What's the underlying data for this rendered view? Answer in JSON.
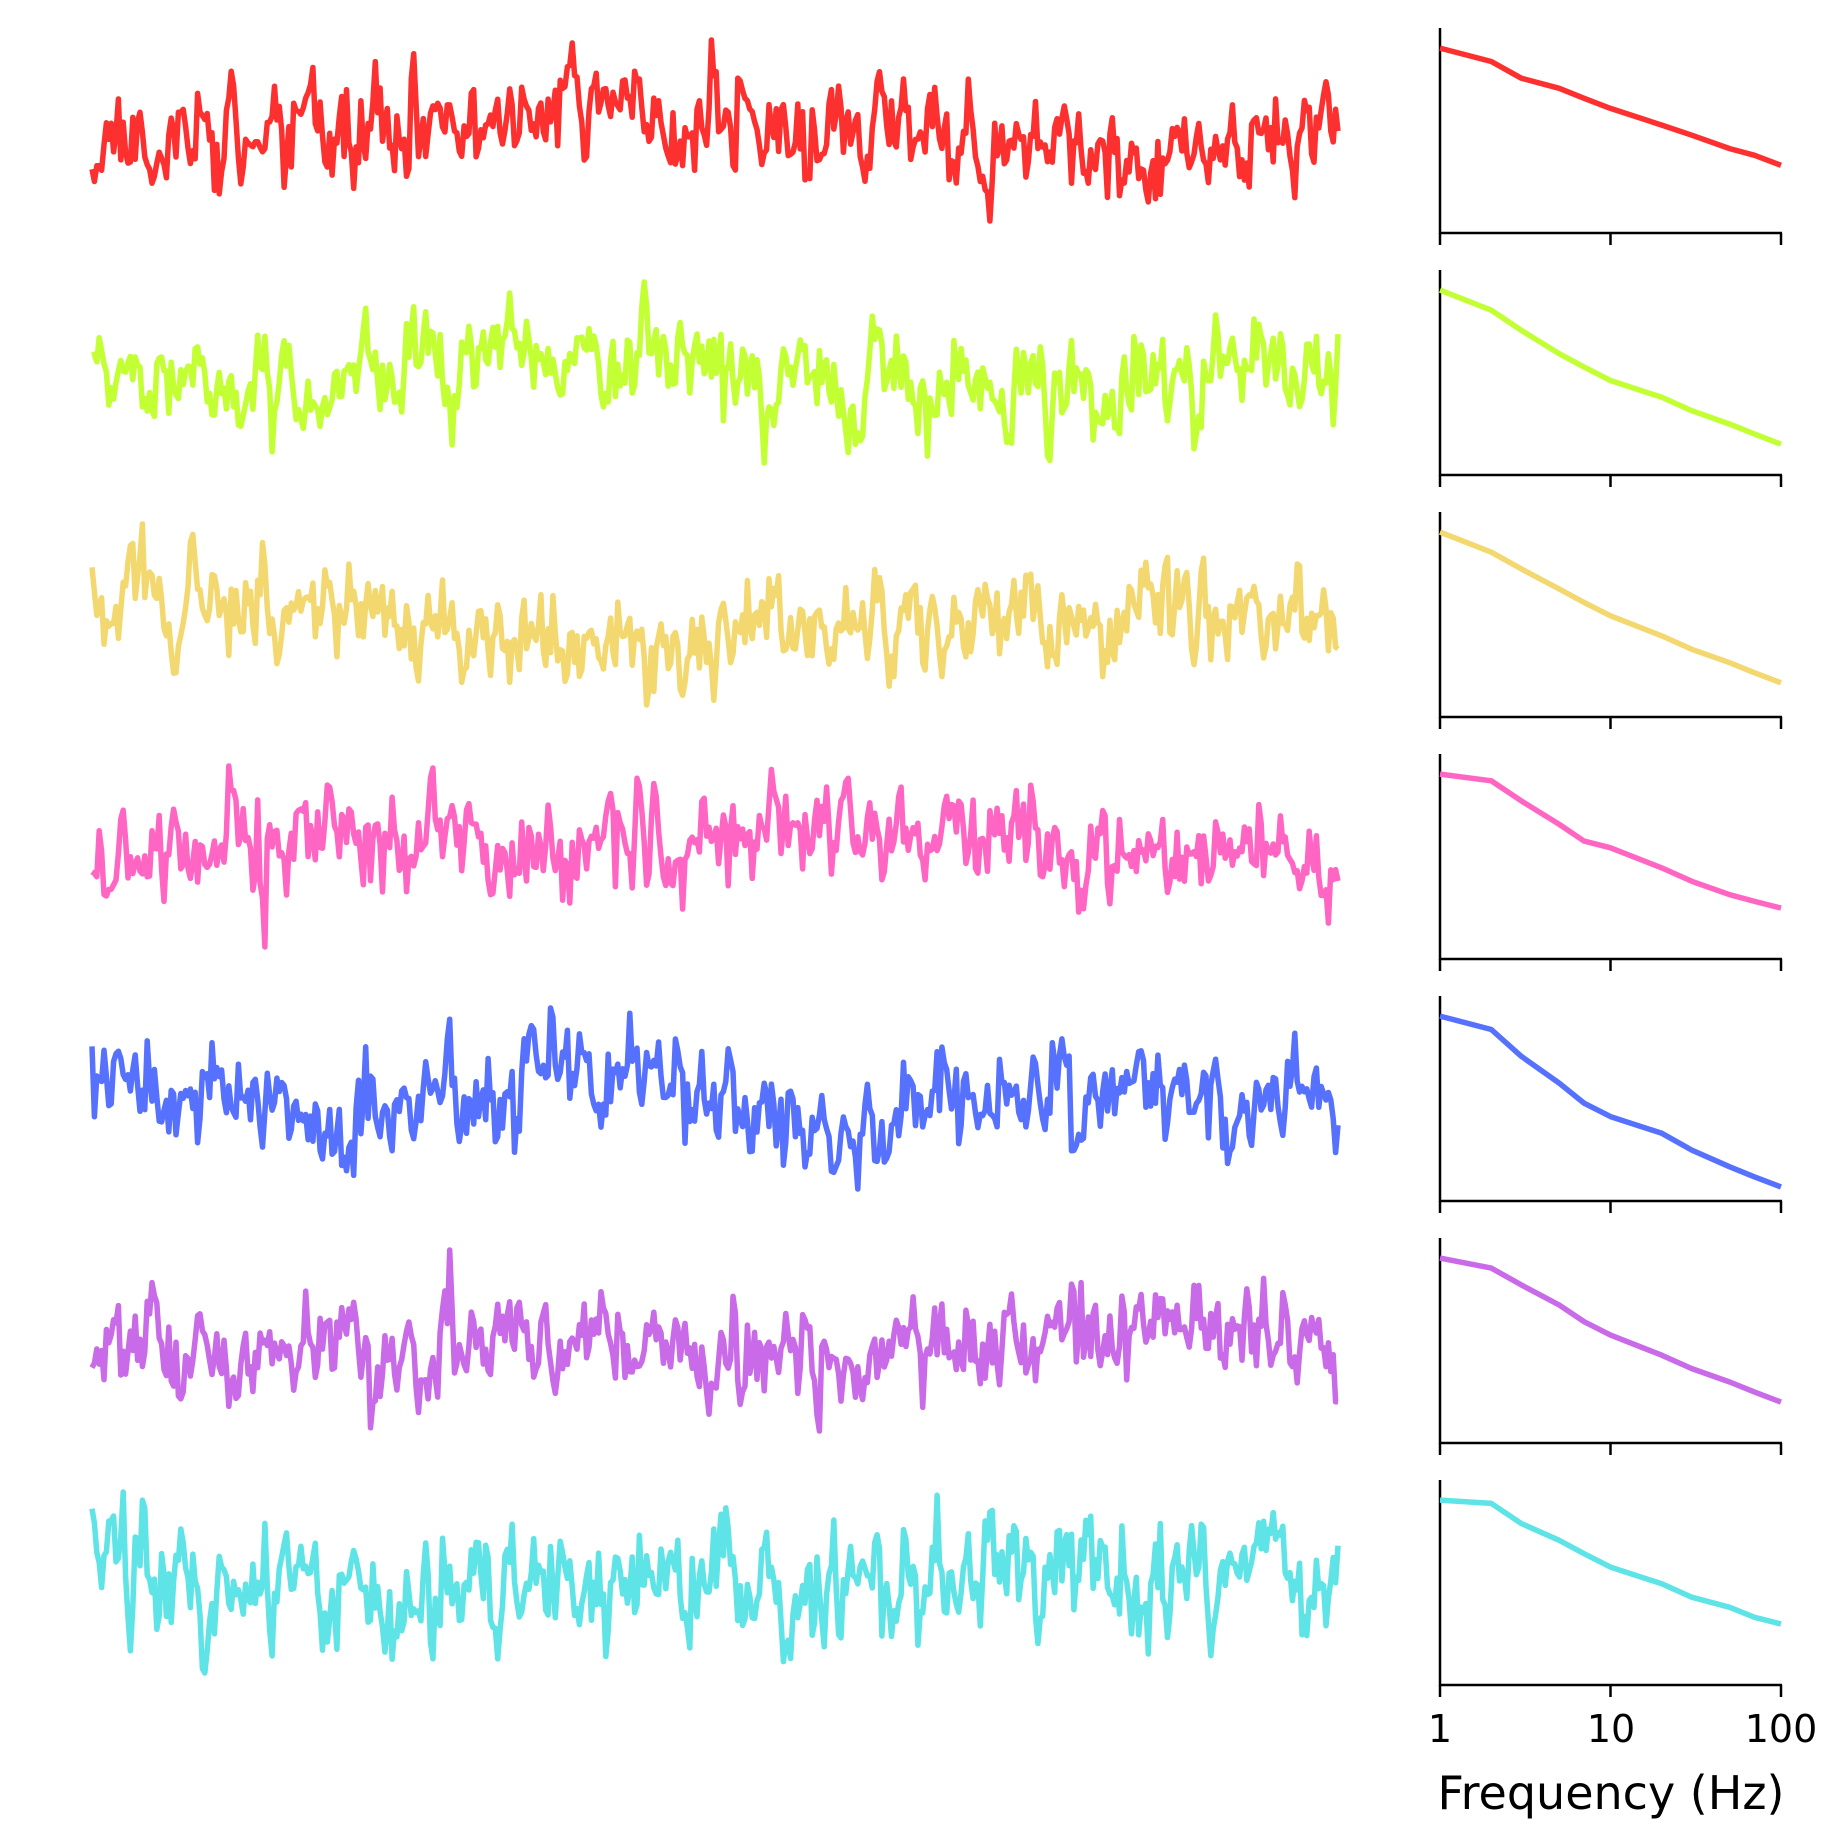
{
  "chart_data": {
    "type": "line",
    "description_free": true,
    "rows": [
      {
        "color": "#fd3030",
        "time_series": {
          "seed": 11,
          "noise": 0.9,
          "drift": [
            0.1,
            0.05,
            0.9,
            0.25,
            -0.3,
            0.35
          ]
        },
        "spectrum": {
          "x": [
            1,
            2,
            3,
            5,
            7,
            10,
            20,
            30,
            50,
            70,
            100
          ],
          "y": [
            0.0,
            -0.2,
            -0.45,
            -0.6,
            -0.75,
            -0.9,
            -1.15,
            -1.3,
            -1.5,
            -1.6,
            -1.75
          ]
        }
      },
      {
        "color": "#c2ff33",
        "time_series": {
          "seed": 23,
          "noise": 0.8,
          "drift": [
            -0.2,
            0.1,
            0.6,
            -0.1,
            -0.6,
            0.8
          ]
        },
        "spectrum": {
          "x": [
            1,
            2,
            3,
            5,
            7,
            10,
            20,
            30,
            50,
            70,
            100
          ],
          "y": [
            0.0,
            -0.3,
            -0.6,
            -0.95,
            -1.15,
            -1.35,
            -1.6,
            -1.8,
            -2.0,
            -2.15,
            -2.3
          ]
        }
      },
      {
        "color": "#f3d870",
        "time_series": {
          "seed": 37,
          "noise": 0.75,
          "drift": [
            0.8,
            0.4,
            -0.6,
            0.1,
            0.0,
            0.5
          ]
        },
        "spectrum": {
          "x": [
            1,
            2,
            3,
            5,
            7,
            10,
            20,
            30,
            50,
            70,
            100
          ],
          "y": [
            0.0,
            -0.3,
            -0.55,
            -0.85,
            -1.05,
            -1.25,
            -1.55,
            -1.75,
            -1.95,
            -2.1,
            -2.25
          ]
        }
      },
      {
        "color": "#ff66c4",
        "time_series": {
          "seed": 41,
          "noise": 0.75,
          "drift": [
            -0.1,
            0.3,
            -0.2,
            0.4,
            0.2,
            -0.3
          ]
        },
        "spectrum": {
          "x": [
            1,
            2,
            3,
            5,
            7,
            10,
            20,
            30,
            50,
            70,
            100
          ],
          "y": [
            0.0,
            -0.1,
            -0.4,
            -0.75,
            -1.0,
            -1.1,
            -1.4,
            -1.6,
            -1.8,
            -1.9,
            -2.0
          ]
        }
      },
      {
        "color": "#5671fe",
        "time_series": {
          "seed": 53,
          "noise": 0.75,
          "drift": [
            0.3,
            -0.4,
            0.5,
            -0.6,
            0.1,
            0.4
          ]
        },
        "spectrum": {
          "x": [
            1,
            2,
            3,
            5,
            7,
            10,
            20,
            30,
            50,
            70,
            100
          ],
          "y": [
            0.0,
            -0.2,
            -0.6,
            -1.0,
            -1.3,
            -1.5,
            -1.75,
            -2.0,
            -2.25,
            -2.4,
            -2.55
          ]
        }
      },
      {
        "color": "#c96ae8",
        "time_series": {
          "seed": 67,
          "noise": 0.8,
          "drift": [
            0.0,
            0.1,
            0.2,
            -0.1,
            0.6,
            0.0
          ]
        },
        "spectrum": {
          "x": [
            1,
            2,
            3,
            5,
            7,
            10,
            20,
            30,
            50,
            70,
            100
          ],
          "y": [
            0.0,
            -0.15,
            -0.4,
            -0.7,
            -0.95,
            -1.15,
            -1.45,
            -1.65,
            -1.85,
            -2.0,
            -2.15
          ]
        }
      },
      {
        "color": "#5ee3e6",
        "time_series": {
          "seed": 79,
          "noise": 0.85,
          "drift": [
            0.3,
            -0.1,
            -0.2,
            0.0,
            0.3,
            -0.2
          ]
        },
        "spectrum": {
          "x": [
            1,
            2,
            3,
            5,
            7,
            10,
            20,
            30,
            50,
            70,
            100
          ],
          "y": [
            0.0,
            -0.05,
            -0.35,
            -0.6,
            -0.8,
            -1.0,
            -1.25,
            -1.45,
            -1.6,
            -1.75,
            -1.85
          ]
        }
      }
    ],
    "spectrum_axis": {
      "scale": "log",
      "xlim": [
        1,
        100
      ],
      "xticks": [
        1,
        10,
        100
      ],
      "xtick_labels": [
        "1",
        "10",
        "100"
      ],
      "xlabel": "Frequency (Hz)",
      "ylim": [
        -2.7,
        0.15
      ]
    },
    "time_series_samples": 520
  }
}
